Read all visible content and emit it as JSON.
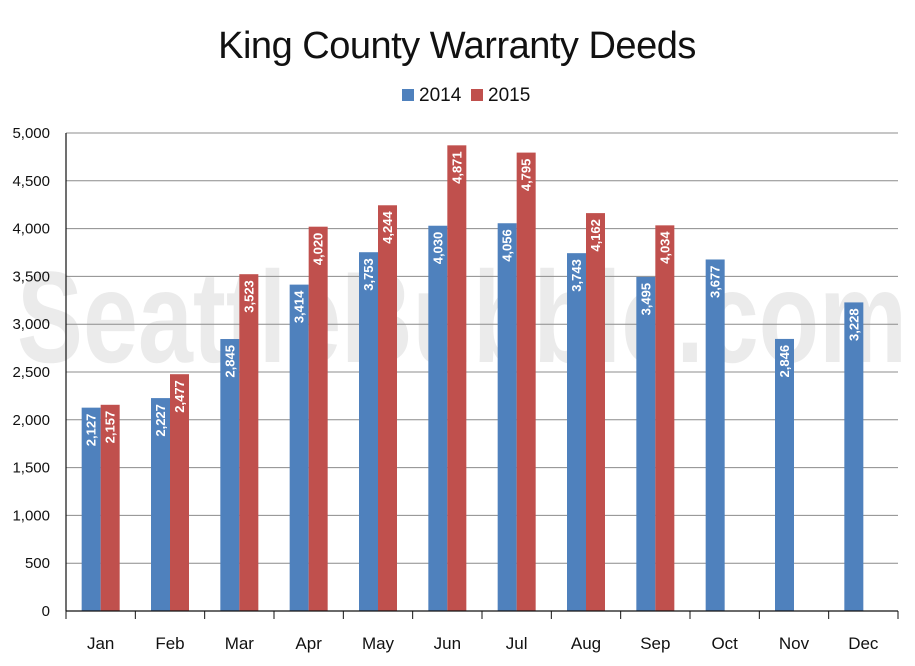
{
  "chart_data": {
    "type": "bar",
    "title": "King County Warranty Deeds",
    "xlabel": "",
    "ylabel": "",
    "categories": [
      "Jan",
      "Feb",
      "Mar",
      "Apr",
      "May",
      "Jun",
      "Jul",
      "Aug",
      "Sep",
      "Oct",
      "Nov",
      "Dec"
    ],
    "series": [
      {
        "name": "2014",
        "color": "#4f81bd",
        "values": [
          2127,
          2227,
          2845,
          3414,
          3753,
          4030,
          4056,
          3743,
          3495,
          3677,
          2846,
          3228
        ],
        "labels": [
          "2,127",
          "2,227",
          "2,845",
          "3,414",
          "3,753",
          "4,030",
          "4,056",
          "3,743",
          "3,495",
          "3,677",
          "2,846",
          "3,228"
        ]
      },
      {
        "name": "2015",
        "color": "#c0504d",
        "values": [
          2157,
          2477,
          3523,
          4020,
          4244,
          4871,
          4795,
          4162,
          4034,
          null,
          null,
          null
        ],
        "labels": [
          "2,157",
          "2,477",
          "3,523",
          "4,020",
          "4,244",
          "4,871",
          "4,795",
          "4,162",
          "4,034",
          null,
          null,
          null
        ]
      }
    ],
    "ylim": [
      0,
      5000
    ],
    "yticks": [
      0,
      500,
      1000,
      1500,
      2000,
      2500,
      3000,
      3500,
      4000,
      4500,
      5000
    ],
    "ytick_labels": [
      "0",
      "500",
      "1,000",
      "1,500",
      "2,000",
      "2,500",
      "3,000",
      "3,500",
      "4,000",
      "4,500",
      "5,000"
    ],
    "grid": true,
    "legend": "top",
    "watermark": "SeattleBubble.com"
  }
}
